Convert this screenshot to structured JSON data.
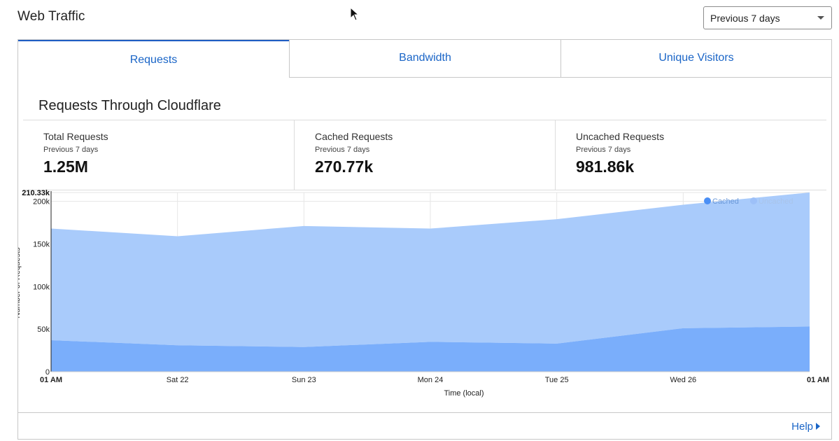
{
  "header": {
    "title": "Web Traffic",
    "range_selected": "Previous 7 days"
  },
  "tabs": [
    {
      "label": "Requests",
      "active": true
    },
    {
      "label": "Bandwidth",
      "active": false
    },
    {
      "label": "Unique Visitors",
      "active": false
    }
  ],
  "section": {
    "title": "Requests Through Cloudflare"
  },
  "stats": [
    {
      "label": "Total Requests",
      "period": "Previous 7 days",
      "value": "1.25M"
    },
    {
      "label": "Cached Requests",
      "period": "Previous 7 days",
      "value": "270.77k"
    },
    {
      "label": "Uncached Requests",
      "period": "Previous 7 days",
      "value": "981.86k"
    }
  ],
  "colors": {
    "cached": "#7aaefb",
    "uncached": "#a9cbfb",
    "accent": "#1a65c7"
  },
  "chart_data": {
    "type": "area",
    "stacked": true,
    "title": "",
    "xlabel": "Time (local)",
    "ylabel": "Number of Requests",
    "x_ticks": [
      "01 AM",
      "Sat 22",
      "Sun 23",
      "Mon 24",
      "Tue 25",
      "Wed 26",
      "01 AM"
    ],
    "y_ticks": [
      "0",
      "50k",
      "100k",
      "150k",
      "200k"
    ],
    "y_tick_values": [
      0,
      50000,
      100000,
      150000,
      200000
    ],
    "ymax_label": "210.33k",
    "ylim": [
      0,
      210330
    ],
    "legend_position": "top-right",
    "series": [
      {
        "name": "Cached",
        "values": [
          37000,
          31000,
          29000,
          35000,
          33000,
          51000,
          53000
        ]
      },
      {
        "name": "Uncached",
        "values": [
          131000,
          128000,
          142000,
          133000,
          146000,
          145000,
          157330
        ]
      }
    ]
  },
  "footer": {
    "help_label": "Help"
  }
}
